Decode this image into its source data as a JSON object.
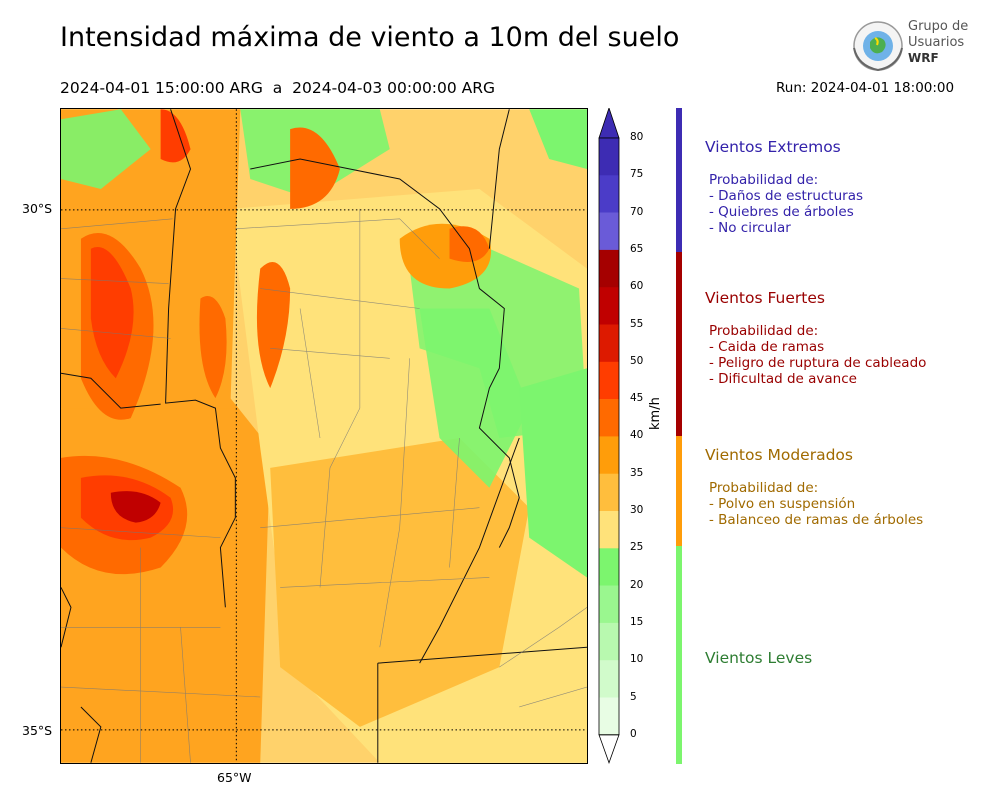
{
  "header": {
    "title": "Intensidad máxima de viento a 10m del suelo",
    "period": "2024-04-01 15:00:00 ARG  a  2024-04-03 00:00:00 ARG",
    "run": "Run: 2024-04-01 18:00:00"
  },
  "logo": {
    "line1": "Grupo de",
    "line2": "Usuarios",
    "line3": "WRF"
  },
  "map": {
    "lat_labels": [
      "30°S",
      "35°S"
    ],
    "lon_labels": [
      "65°W"
    ]
  },
  "colorbar": {
    "unit": "km/h",
    "ticks": [
      "80",
      "75",
      "70",
      "65",
      "60",
      "55",
      "50",
      "45",
      "40",
      "35",
      "30",
      "25",
      "20",
      "15",
      "10",
      "5",
      "0"
    ],
    "colors": [
      "#3d2cb3",
      "#4b3cc8",
      "#6a5bd8",
      "#a50000",
      "#c00000",
      "#dd1a00",
      "#ff3d00",
      "#ff6a00",
      "#ff9d0a",
      "#ffbe3d",
      "#ffe27a",
      "#7cf56e",
      "#9af78f",
      "#b8f9af",
      "#d1fbcb",
      "#e8fde4"
    ]
  },
  "categories": [
    {
      "title": "Vientos Extremos",
      "color": "#3d2cb3",
      "desc": "Probabilidad de:\n- Daños de estructuras\n- Quiebres de árboles\n- No circular"
    },
    {
      "title": "Vientos Fuertes",
      "color": "#a50000",
      "desc": "Probabilidad de:\n- Caida de ramas\n- Peligro de ruptura de cableado\n- Dificultad de avance"
    },
    {
      "title": "Vientos Moderados",
      "color": "#ff9d0a",
      "desc": "Probabilidad de:\n- Polvo en suspensión\n- Balanceo de ramas de árboles"
    },
    {
      "title": "Vientos Leves",
      "color": "#7cf56e",
      "desc": ""
    }
  ],
  "category_text_colors": [
    "#3322aa",
    "#990000",
    "#a06a00",
    "#2e7d32"
  ]
}
